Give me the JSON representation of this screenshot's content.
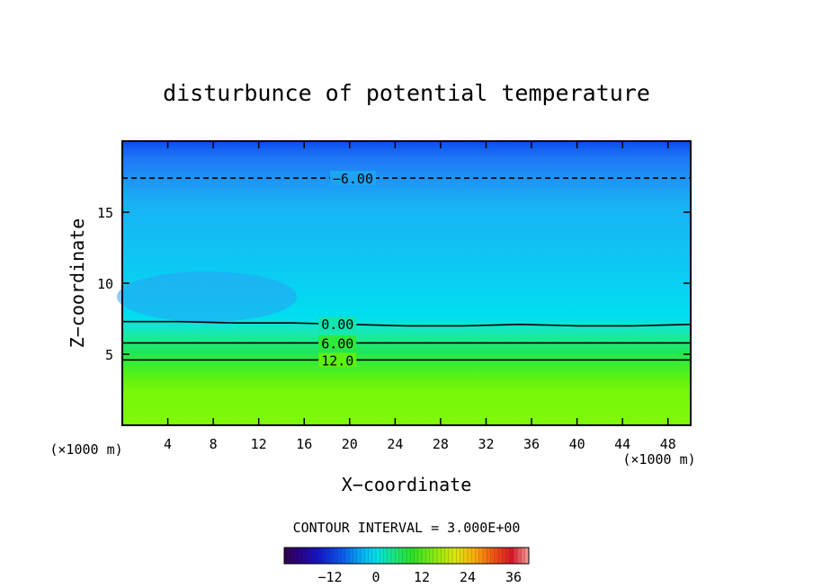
{
  "chart_data": {
    "type": "heatmap",
    "title": "disturbunce of potential temperature",
    "xlabel": "X−coordinate",
    "ylabel": "Z−coordinate",
    "x_units": "(×1000 m)",
    "y_units": "(×1000 m)",
    "xlim": [
      0,
      50
    ],
    "ylim": [
      0,
      20
    ],
    "x_ticks": [
      4,
      8,
      12,
      16,
      20,
      24,
      28,
      32,
      36,
      40,
      44,
      48
    ],
    "y_ticks": [
      5,
      10,
      15
    ],
    "contour_interval_label": "CONTOUR INTERVAL = 3.000E+00",
    "contour_interval": 3.0,
    "contours": [
      {
        "label": "−6.00",
        "value": -6.0,
        "label_x": 18.5,
        "z": [
          17.4,
          17.4,
          17.4,
          17.4,
          17.4,
          17.4,
          17.4,
          17.4,
          17.4,
          17.4,
          17.4
        ],
        "style": "dashed"
      },
      {
        "label": "0.00",
        "value": 0.0,
        "label_x": 17.5,
        "z": [
          7.3,
          7.3,
          7.2,
          7.2,
          7.1,
          7.0,
          7.0,
          7.1,
          7.0,
          7.0,
          7.1
        ],
        "style": "solid"
      },
      {
        "label": "6.00",
        "value": 6.0,
        "label_x": 17.5,
        "z": [
          5.8,
          5.8,
          5.8,
          5.8,
          5.8,
          5.8,
          5.8,
          5.8,
          5.8,
          5.8,
          5.8
        ],
        "style": "solid"
      },
      {
        "label": "12.0",
        "value": 12.0,
        "label_x": 17.5,
        "z": [
          4.6,
          4.6,
          4.6,
          4.6,
          4.6,
          4.6,
          4.6,
          4.6,
          4.6,
          4.6,
          4.6
        ],
        "style": "solid"
      }
    ],
    "colorbar": {
      "ticks": [
        -12,
        0,
        12,
        24,
        36
      ],
      "tick_labels": [
        "−12",
        "0",
        "12",
        "24",
        "36"
      ],
      "range": [
        -24,
        40
      ]
    },
    "grid": false
  }
}
